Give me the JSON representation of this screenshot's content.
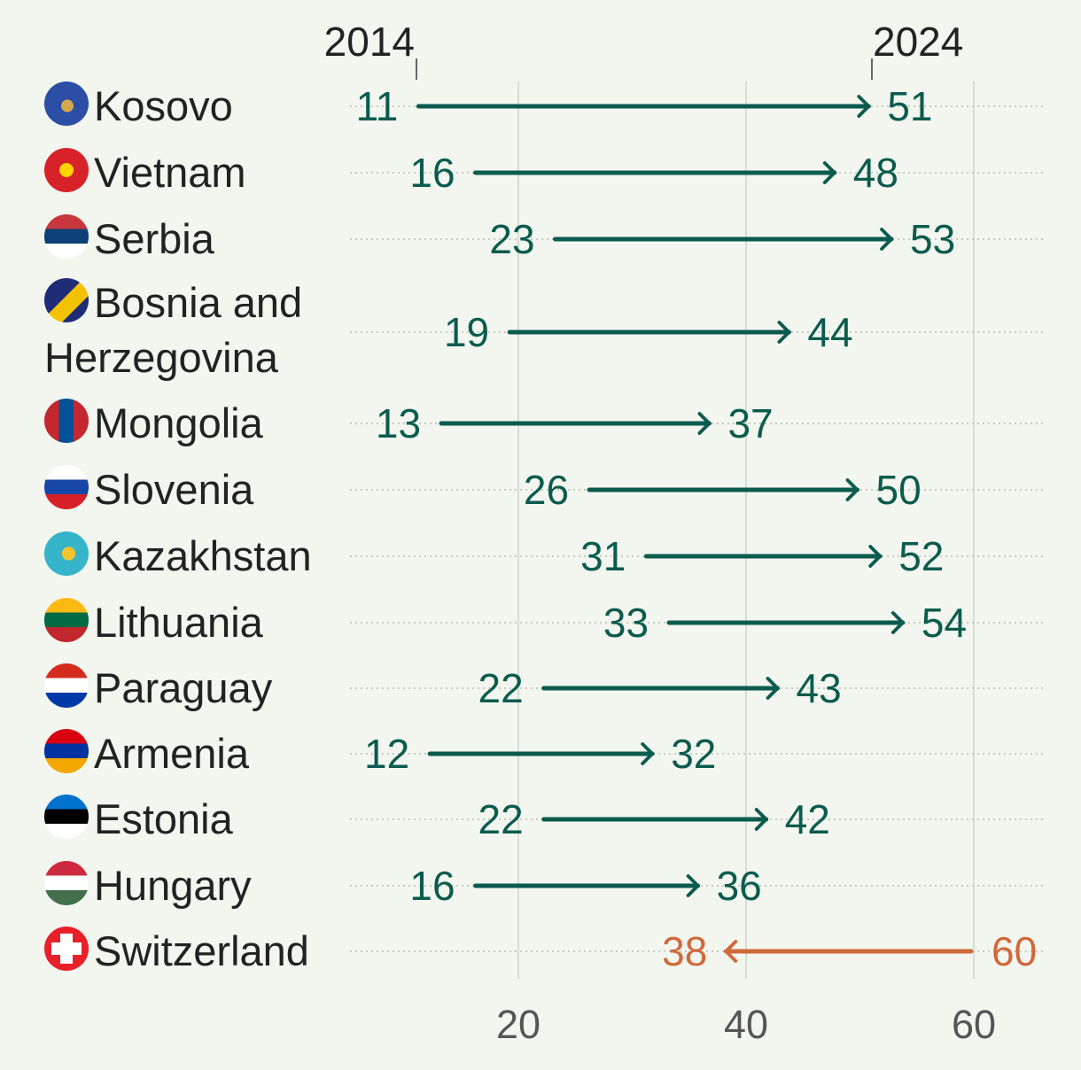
{
  "chart_data": {
    "type": "arrow-dumbbell",
    "start_label": "2014",
    "end_label": "2024",
    "xlim": [
      0,
      60
    ],
    "x_ticks": [
      20,
      40,
      60
    ],
    "grid": true,
    "rows": [
      {
        "country": "Kosovo",
        "v2014": 11,
        "v2024": 51,
        "flag": "kosovo-flag"
      },
      {
        "country": "Vietnam",
        "v2014": 16,
        "v2024": 48,
        "flag": "vietnam-flag"
      },
      {
        "country": "Serbia",
        "v2014": 23,
        "v2024": 53,
        "flag": "serbia-flag"
      },
      {
        "country": "Bosnia and Herzegovina",
        "v2014": 19,
        "v2024": 44,
        "flag": "bosnia-flag"
      },
      {
        "country": "Mongolia",
        "v2014": 13,
        "v2024": 37,
        "flag": "mongolia-flag"
      },
      {
        "country": "Slovenia",
        "v2014": 26,
        "v2024": 50,
        "flag": "slovenia-flag"
      },
      {
        "country": "Kazakhstan",
        "v2014": 31,
        "v2024": 52,
        "flag": "kazakhstan-flag"
      },
      {
        "country": "Lithuania",
        "v2014": 33,
        "v2024": 54,
        "flag": "lithuania-flag"
      },
      {
        "country": "Paraguay",
        "v2014": 22,
        "v2024": 43,
        "flag": "paraguay-flag"
      },
      {
        "country": "Armenia",
        "v2014": 12,
        "v2024": 32,
        "flag": "armenia-flag"
      },
      {
        "country": "Estonia",
        "v2014": 22,
        "v2024": 42,
        "flag": "estonia-flag"
      },
      {
        "country": "Hungary",
        "v2014": 16,
        "v2024": 36,
        "flag": "hungary-flag"
      },
      {
        "country": "Switzerland",
        "v2014": 60,
        "v2024": 38,
        "flag": "switzerland-flag"
      }
    ],
    "colors": {
      "increase": "#0b5b4e",
      "decrease": "#d0693a",
      "background": "#f2f6ef",
      "grid": "#d6ddd2",
      "axis_text": "#555555",
      "label_text": "#222222"
    }
  }
}
